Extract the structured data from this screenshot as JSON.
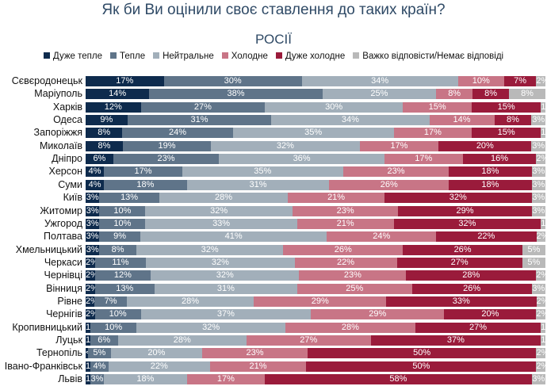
{
  "chart_data": {
    "type": "stacked-bar-horizontal",
    "title": "Як би Ви оцінили своє ставлення до таких країн?",
    "subtitle": "РОСІЇ",
    "legend_position": "top",
    "series": [
      {
        "name": "Дуже тепле",
        "color": "#0e2b4d"
      },
      {
        "name": "Тепле",
        "color": "#5f7489"
      },
      {
        "name": "Нейтральне",
        "color": "#a2afba"
      },
      {
        "name": "Холодне",
        "color": "#c87586"
      },
      {
        "name": "Дуже холодне",
        "color": "#9a1b3b"
      },
      {
        "name": "Важко відповісти/Немає відповіді",
        "color": "#b9b9b9"
      }
    ],
    "categories": [
      "Сєвєродонецьк",
      "Маріуполь",
      "Харків",
      "Одеса",
      "Запоріжжя",
      "Миколаїв",
      "Дніпро",
      "Херсон",
      "Суми",
      "Київ",
      "Житомир",
      "Ужгород",
      "Полтава",
      "Хмельницький",
      "Черкаси",
      "Чернівці",
      "Вінниця",
      "Рівне",
      "Чернігів",
      "Кропивницький",
      "Луцьк",
      "Тернопіль",
      "Івано-Франківськ",
      "Львів"
    ],
    "values": [
      [
        17,
        30,
        34,
        10,
        7,
        2
      ],
      [
        14,
        38,
        25,
        8,
        8,
        8
      ],
      [
        12,
        27,
        30,
        15,
        15,
        1
      ],
      [
        9,
        31,
        34,
        14,
        8,
        3
      ],
      [
        8,
        24,
        35,
        17,
        15,
        1
      ],
      [
        8,
        19,
        32,
        17,
        20,
        3
      ],
      [
        6,
        23,
        36,
        17,
        16,
        2
      ],
      [
        4,
        17,
        35,
        23,
        18,
        3
      ],
      [
        4,
        18,
        31,
        26,
        18,
        3
      ],
      [
        3,
        13,
        28,
        21,
        32,
        3
      ],
      [
        3,
        10,
        32,
        23,
        29,
        3
      ],
      [
        3,
        10,
        33,
        21,
        32,
        1
      ],
      [
        3,
        9,
        41,
        24,
        22,
        2
      ],
      [
        3,
        8,
        32,
        26,
        26,
        5
      ],
      [
        2,
        11,
        32,
        22,
        27,
        5
      ],
      [
        2,
        12,
        32,
        23,
        28,
        2
      ],
      [
        2,
        13,
        31,
        25,
        26,
        3
      ],
      [
        2,
        7,
        28,
        29,
        33,
        2
      ],
      [
        2,
        10,
        37,
        29,
        20,
        2
      ],
      [
        1,
        10,
        32,
        28,
        27,
        1
      ],
      [
        1,
        6,
        28,
        27,
        37,
        1
      ],
      [
        0.5,
        5,
        20,
        23,
        50,
        2
      ],
      [
        1,
        4,
        22,
        21,
        50,
        2
      ],
      [
        1,
        3,
        18,
        17,
        58,
        3
      ]
    ],
    "value_labels_override": {
      "21": {
        "0": "<1%"
      }
    },
    "unit": "%"
  }
}
